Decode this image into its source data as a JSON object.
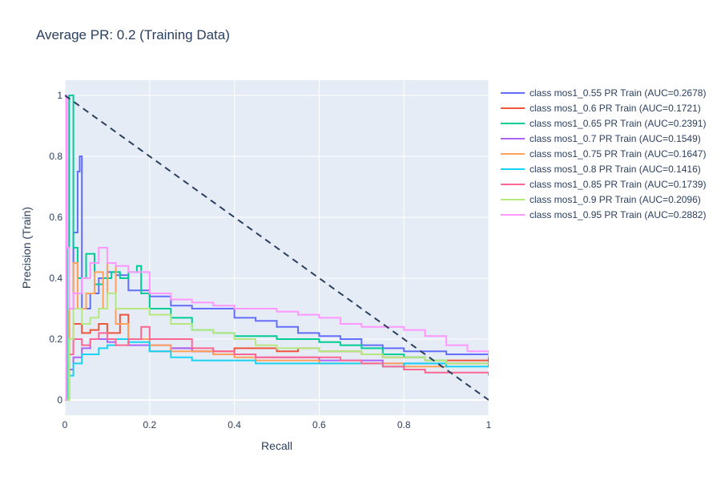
{
  "chart_data": {
    "type": "line",
    "title": "Average PR: 0.2 (Training Data)",
    "xlabel": "Recall",
    "ylabel": "Precision (Train)",
    "xlim": [
      0,
      1
    ],
    "ylim": [
      -0.05,
      1.05
    ],
    "xticks": [
      "0",
      "0.2",
      "0.4",
      "0.6",
      "0.8",
      "1"
    ],
    "yticks": [
      "0",
      "0.2",
      "0.4",
      "0.6",
      "0.8",
      "1"
    ],
    "grid": true,
    "legend_position": "right",
    "plot_bg": "#e5ecf6",
    "series": [
      {
        "name": "class mos1_0.55 PR Train (AUC=0.2678)",
        "color": "#636efa",
        "x": [
          0,
          0.01,
          0.02,
          0.03,
          0.035,
          0.04,
          0.06,
          0.08,
          0.1,
          0.12,
          0.15,
          0.2,
          0.25,
          0.3,
          0.35,
          0.4,
          0.45,
          0.5,
          0.55,
          0.6,
          0.65,
          0.7,
          0.75,
          0.8,
          0.85,
          0.9,
          0.95,
          1.0
        ],
        "y": [
          0,
          0.3,
          0.55,
          0.75,
          0.8,
          0.3,
          0.35,
          0.4,
          0.42,
          0.41,
          0.36,
          0.34,
          0.31,
          0.3,
          0.3,
          0.27,
          0.26,
          0.24,
          0.22,
          0.21,
          0.2,
          0.18,
          0.17,
          0.16,
          0.16,
          0.15,
          0.15,
          0.13
        ]
      },
      {
        "name": "class mos1_0.6 PR Train (AUC=0.1721)",
        "color": "#ef553b",
        "x": [
          0,
          0.01,
          0.02,
          0.04,
          0.06,
          0.08,
          0.1,
          0.13,
          0.15,
          0.2,
          0.25,
          0.3,
          0.35,
          0.4,
          0.45,
          0.5,
          0.55,
          0.6,
          0.65,
          0.7,
          0.75,
          0.8,
          0.85,
          0.9,
          0.95,
          1.0
        ],
        "y": [
          0,
          0.2,
          0.25,
          0.22,
          0.23,
          0.25,
          0.22,
          0.28,
          0.2,
          0.16,
          0.17,
          0.16,
          0.16,
          0.17,
          0.17,
          0.16,
          0.17,
          0.16,
          0.16,
          0.15,
          0.14,
          0.14,
          0.13,
          0.13,
          0.13,
          0.12
        ]
      },
      {
        "name": "class mos1_0.65 PR Train (AUC=0.2391)",
        "color": "#00cc96",
        "x": [
          0,
          0.005,
          0.01,
          0.015,
          0.02,
          0.03,
          0.05,
          0.07,
          0.09,
          0.11,
          0.13,
          0.15,
          0.17,
          0.18,
          0.2,
          0.25,
          0.3,
          0.35,
          0.4,
          0.45,
          0.5,
          0.55,
          0.6,
          0.65,
          0.7,
          0.75,
          0.8,
          0.85,
          0.9,
          0.95,
          1.0
        ],
        "y": [
          0,
          0.5,
          1.0,
          1.0,
          0.5,
          0.4,
          0.48,
          0.38,
          0.4,
          0.42,
          0.4,
          0.42,
          0.44,
          0.35,
          0.3,
          0.27,
          0.23,
          0.22,
          0.21,
          0.21,
          0.2,
          0.2,
          0.19,
          0.18,
          0.17,
          0.15,
          0.14,
          0.13,
          0.12,
          0.12,
          0.11
        ]
      },
      {
        "name": "class mos1_0.7 PR Train (AUC=0.1549)",
        "color": "#ab63fa",
        "x": [
          0,
          0.01,
          0.02,
          0.04,
          0.06,
          0.08,
          0.1,
          0.12,
          0.15,
          0.2,
          0.25,
          0.3,
          0.35,
          0.4,
          0.45,
          0.5,
          0.55,
          0.6,
          0.65,
          0.7,
          0.75,
          0.8,
          0.85,
          0.9,
          0.95,
          1.0
        ],
        "y": [
          0,
          0.1,
          0.14,
          0.17,
          0.2,
          0.2,
          0.19,
          0.2,
          0.18,
          0.18,
          0.17,
          0.16,
          0.15,
          0.15,
          0.14,
          0.14,
          0.14,
          0.13,
          0.13,
          0.13,
          0.12,
          0.12,
          0.12,
          0.12,
          0.12,
          0.12
        ]
      },
      {
        "name": "class mos1_0.75 PR Train (AUC=0.1647)",
        "color": "#ffa15a",
        "x": [
          0,
          0.01,
          0.02,
          0.03,
          0.05,
          0.07,
          0.09,
          0.1,
          0.12,
          0.15,
          0.2,
          0.25,
          0.3,
          0.35,
          0.4,
          0.45,
          0.5,
          0.55,
          0.6,
          0.65,
          0.7,
          0.75,
          0.8,
          0.85,
          0.9,
          0.95,
          1.0
        ],
        "y": [
          0,
          0.3,
          0.45,
          0.3,
          0.35,
          0.42,
          0.3,
          0.45,
          0.25,
          0.2,
          0.18,
          0.16,
          0.16,
          0.15,
          0.14,
          0.13,
          0.13,
          0.13,
          0.12,
          0.12,
          0.12,
          0.12,
          0.11,
          0.11,
          0.12,
          0.12,
          0.12
        ]
      },
      {
        "name": "class mos1_0.8 PR Train (AUC=0.1416)",
        "color": "#19d3f3",
        "x": [
          0,
          0.01,
          0.02,
          0.04,
          0.06,
          0.08,
          0.1,
          0.12,
          0.15,
          0.2,
          0.25,
          0.3,
          0.35,
          0.4,
          0.45,
          0.5,
          0.55,
          0.6,
          0.65,
          0.7,
          0.75,
          0.8,
          0.85,
          0.9,
          0.95,
          1.0
        ],
        "y": [
          0,
          0.08,
          0.12,
          0.15,
          0.15,
          0.17,
          0.18,
          0.2,
          0.19,
          0.16,
          0.14,
          0.13,
          0.13,
          0.13,
          0.12,
          0.12,
          0.12,
          0.12,
          0.12,
          0.12,
          0.11,
          0.12,
          0.12,
          0.11,
          0.11,
          0.11
        ]
      },
      {
        "name": "class mos1_0.85 PR Train (AUC=0.1739)",
        "color": "#ff6692",
        "x": [
          0,
          0.01,
          0.02,
          0.04,
          0.06,
          0.08,
          0.1,
          0.12,
          0.15,
          0.18,
          0.2,
          0.25,
          0.3,
          0.35,
          0.4,
          0.45,
          0.5,
          0.55,
          0.6,
          0.65,
          0.7,
          0.75,
          0.8,
          0.85,
          0.9,
          0.95,
          1.0
        ],
        "y": [
          0,
          0.15,
          0.2,
          0.18,
          0.2,
          0.22,
          0.2,
          0.18,
          0.2,
          0.24,
          0.2,
          0.2,
          0.17,
          0.16,
          0.15,
          0.14,
          0.14,
          0.14,
          0.14,
          0.13,
          0.12,
          0.11,
          0.1,
          0.09,
          0.09,
          0.09,
          0.08
        ]
      },
      {
        "name": "class mos1_0.9 PR Train (AUC=0.2096)",
        "color": "#b6e880",
        "x": [
          0,
          0.01,
          0.02,
          0.04,
          0.06,
          0.08,
          0.1,
          0.12,
          0.15,
          0.2,
          0.25,
          0.3,
          0.35,
          0.4,
          0.45,
          0.5,
          0.55,
          0.6,
          0.65,
          0.7,
          0.75,
          0.8,
          0.85,
          0.9,
          0.95,
          1.0
        ],
        "y": [
          0,
          0.2,
          0.3,
          0.25,
          0.27,
          0.3,
          0.35,
          0.3,
          0.3,
          0.28,
          0.25,
          0.23,
          0.22,
          0.2,
          0.18,
          0.17,
          0.17,
          0.16,
          0.16,
          0.15,
          0.14,
          0.14,
          0.13,
          0.12,
          0.12,
          0.12
        ]
      },
      {
        "name": "class mos1_0.95 PR Train (AUC=0.2882)",
        "color": "#ff97ff",
        "x": [
          0,
          0.003,
          0.005,
          0.01,
          0.02,
          0.04,
          0.06,
          0.08,
          0.1,
          0.12,
          0.15,
          0.2,
          0.25,
          0.3,
          0.35,
          0.4,
          0.45,
          0.5,
          0.55,
          0.6,
          0.65,
          0.7,
          0.75,
          0.8,
          0.85,
          0.9,
          0.95,
          1.0
        ],
        "y": [
          0,
          1.0,
          0.5,
          0.3,
          0.35,
          0.4,
          0.45,
          0.5,
          0.45,
          0.44,
          0.42,
          0.35,
          0.33,
          0.32,
          0.31,
          0.3,
          0.3,
          0.29,
          0.28,
          0.27,
          0.25,
          0.24,
          0.24,
          0.23,
          0.21,
          0.18,
          0.16,
          0.14
        ]
      }
    ],
    "baseline": {
      "x": [
        0,
        1
      ],
      "y": [
        1,
        0
      ],
      "color": "#2a3f5f",
      "dash": "dash"
    }
  }
}
